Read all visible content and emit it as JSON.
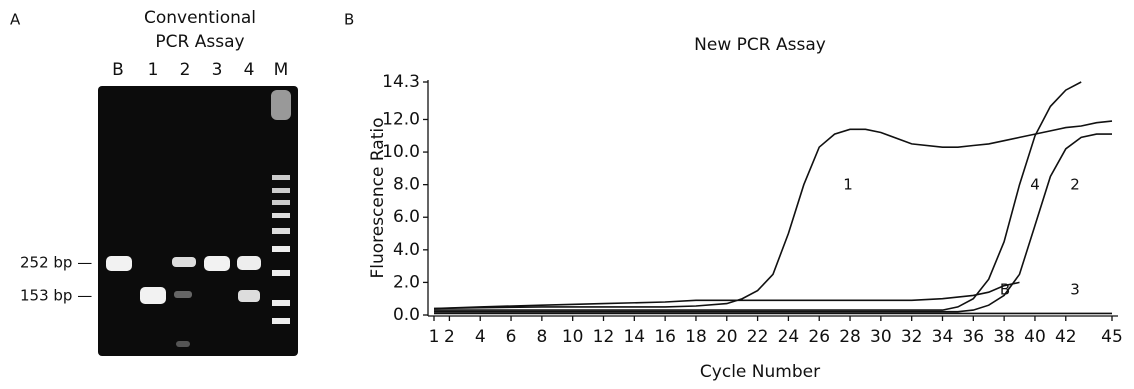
{
  "panel_a": {
    "label": "A",
    "title_line1": "Conventional",
    "title_line2": "PCR Assay",
    "lanes": [
      "B",
      "1",
      "2",
      "3",
      "4",
      "M"
    ],
    "markers": [
      "252 bp —",
      "153 bp —"
    ]
  },
  "chart_data": {
    "type": "line",
    "panel_label": "B",
    "title": "New PCR Assay",
    "x_label": "Cycle Number",
    "y_label": "Fluorescence Ratio",
    "x": [
      1,
      4,
      8,
      12,
      16,
      18,
      20,
      21,
      22,
      23,
      24,
      25,
      26,
      27,
      28,
      29,
      30,
      32,
      34,
      35,
      36,
      37,
      38,
      39,
      40,
      41,
      42,
      43,
      44,
      45
    ],
    "series": [
      {
        "name": "1",
        "color": "#111111",
        "values": [
          0.4,
          0.45,
          0.5,
          0.5,
          0.5,
          0.55,
          0.7,
          1.0,
          1.5,
          2.5,
          5,
          8,
          10.3,
          11.1,
          11.4,
          11.4,
          11.2,
          10.5,
          10.3,
          10.3,
          10.4,
          10.5,
          10.7,
          10.9,
          11.1,
          11.3,
          11.5,
          11.6,
          11.8,
          11.9
        ]
      },
      {
        "name": "4",
        "color": "#111111",
        "values": [
          0.3,
          0.3,
          0.3,
          0.3,
          0.3,
          0.3,
          0.3,
          0.3,
          0.3,
          0.3,
          0.3,
          0.3,
          0.3,
          0.3,
          0.3,
          0.3,
          0.3,
          0.3,
          0.3,
          0.5,
          1.0,
          2.2,
          4.5,
          8,
          11,
          12.8,
          13.8,
          14.3,
          null,
          null
        ]
      },
      {
        "name": "2",
        "color": "#111111",
        "values": [
          0.2,
          0.2,
          0.2,
          0.2,
          0.2,
          0.2,
          0.2,
          0.2,
          0.2,
          0.2,
          0.2,
          0.2,
          0.2,
          0.2,
          0.2,
          0.2,
          0.2,
          0.2,
          0.2,
          0.2,
          0.3,
          0.6,
          1.2,
          2.5,
          5.5,
          8.5,
          10.2,
          10.9,
          11.1,
          11.1
        ]
      },
      {
        "name": "B",
        "color": "#111111",
        "values": [
          0.4,
          0.5,
          0.6,
          0.7,
          0.8,
          0.9,
          0.9,
          0.9,
          0.9,
          0.9,
          0.9,
          0.9,
          0.9,
          0.9,
          0.9,
          0.9,
          0.9,
          0.9,
          1.0,
          1.1,
          1.2,
          1.4,
          1.8,
          2.0,
          null,
          null,
          null,
          null,
          null,
          null
        ]
      },
      {
        "name": "3",
        "color": "#111111",
        "values": [
          0.1,
          0.1,
          0.1,
          0.1,
          0.1,
          0.1,
          0.1,
          0.1,
          0.1,
          0.1,
          0.1,
          0.1,
          0.1,
          0.1,
          0.1,
          0.1,
          0.1,
          0.1,
          0.1,
          0.1,
          0.1,
          0.1,
          0.1,
          0.1,
          0.1,
          0.1,
          0.1,
          0.1,
          0.1,
          0.1
        ]
      }
    ],
    "xlim": [
      1,
      45
    ],
    "xticks": [
      1,
      2,
      4,
      6,
      8,
      10,
      12,
      14,
      16,
      18,
      20,
      22,
      24,
      26,
      28,
      30,
      32,
      34,
      36,
      38,
      40,
      42,
      45
    ],
    "ylim": [
      0,
      14.3
    ],
    "yticks": [
      {
        "value": 0,
        "label": "0.0"
      },
      {
        "value": 2,
        "label": "2.0"
      },
      {
        "value": 4,
        "label": "4.0"
      },
      {
        "value": 6,
        "label": "6.0"
      },
      {
        "value": 8,
        "label": "8.0"
      },
      {
        "value": 10,
        "label": "10.0"
      },
      {
        "value": 12,
        "label": "12.0"
      },
      14.3
    ]
  }
}
